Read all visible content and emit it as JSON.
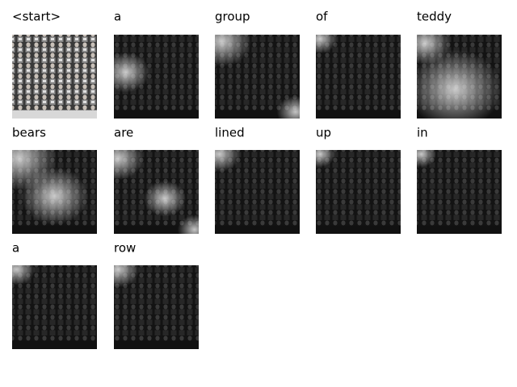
{
  "panels": [
    {
      "label": "<start>"
    },
    {
      "label": "a"
    },
    {
      "label": "group"
    },
    {
      "label": "of"
    },
    {
      "label": "teddy"
    },
    {
      "label": "bears"
    },
    {
      "label": "are"
    },
    {
      "label": "lined"
    },
    {
      "label": "up"
    },
    {
      "label": "in"
    },
    {
      "label": "a"
    },
    {
      "label": "row"
    }
  ]
}
